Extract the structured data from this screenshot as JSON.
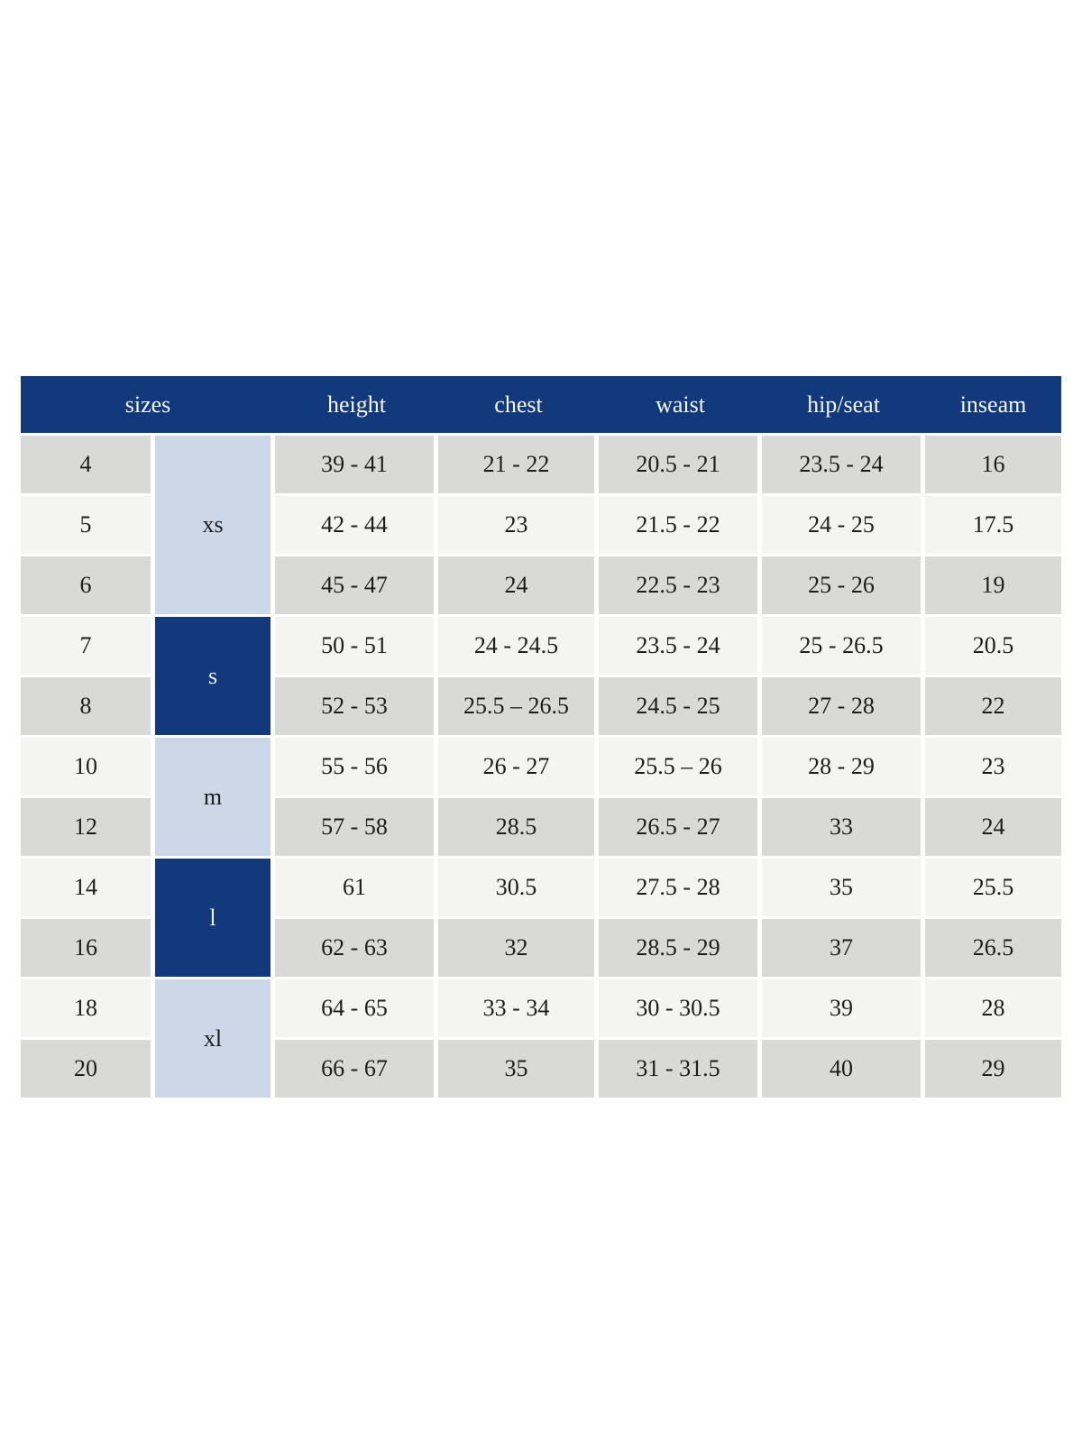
{
  "colors": {
    "header_bg": "#12397b",
    "header_text": "#f5f6f8",
    "group_light_bg": "#ccd8e7",
    "group_dark_bg": "#12397b",
    "row_gray": "#d9d9d8",
    "row_light": "#f4f4f3",
    "text": "#1d1d1b",
    "gap": "#ffffff"
  },
  "chart_data": {
    "type": "table",
    "columns": [
      "sizes",
      "height",
      "chest",
      "waist",
      "hip/seat",
      "inseam"
    ],
    "size_groups": [
      {
        "label": "xs",
        "span": 3,
        "tone": "light"
      },
      {
        "label": "s",
        "span": 2,
        "tone": "dark"
      },
      {
        "label": "m",
        "span": 2,
        "tone": "light"
      },
      {
        "label": "l",
        "span": 2,
        "tone": "dark"
      },
      {
        "label": "xl",
        "span": 2,
        "tone": "light"
      }
    ],
    "rows": [
      {
        "size": "4",
        "height": "39 - 41",
        "chest": "21 - 22",
        "waist": "20.5 - 21",
        "hip_seat": "23.5 - 24",
        "inseam": "16"
      },
      {
        "size": "5",
        "height": "42 - 44",
        "chest": "23",
        "waist": "21.5 - 22",
        "hip_seat": "24 - 25",
        "inseam": "17.5"
      },
      {
        "size": "6",
        "height": "45 - 47",
        "chest": "24",
        "waist": "22.5 - 23",
        "hip_seat": "25 - 26",
        "inseam": "19"
      },
      {
        "size": "7",
        "height": "50 - 51",
        "chest": "24 - 24.5",
        "waist": "23.5 - 24",
        "hip_seat": "25 - 26.5",
        "inseam": "20.5"
      },
      {
        "size": "8",
        "height": "52 - 53",
        "chest": "25.5 – 26.5",
        "waist": "24.5 - 25",
        "hip_seat": "27 - 28",
        "inseam": "22"
      },
      {
        "size": "10",
        "height": "55 - 56",
        "chest": "26 - 27",
        "waist": "25.5 – 26",
        "hip_seat": "28 - 29",
        "inseam": "23"
      },
      {
        "size": "12",
        "height": "57 - 58",
        "chest": "28.5",
        "waist": "26.5 - 27",
        "hip_seat": "33",
        "inseam": "24"
      },
      {
        "size": "14",
        "height": "61",
        "chest": "30.5",
        "waist": "27.5 - 28",
        "hip_seat": "35",
        "inseam": "25.5"
      },
      {
        "size": "16",
        "height": "62 - 63",
        "chest": "32",
        "waist": "28.5 - 29",
        "hip_seat": "37",
        "inseam": "26.5"
      },
      {
        "size": "18",
        "height": "64 - 65",
        "chest": "33 - 34",
        "waist": "30 - 30.5",
        "hip_seat": "39",
        "inseam": "28"
      },
      {
        "size": "20",
        "height": "66 - 67",
        "chest": "35",
        "waist": "31 - 31.5",
        "hip_seat": "40",
        "inseam": "29"
      }
    ]
  }
}
